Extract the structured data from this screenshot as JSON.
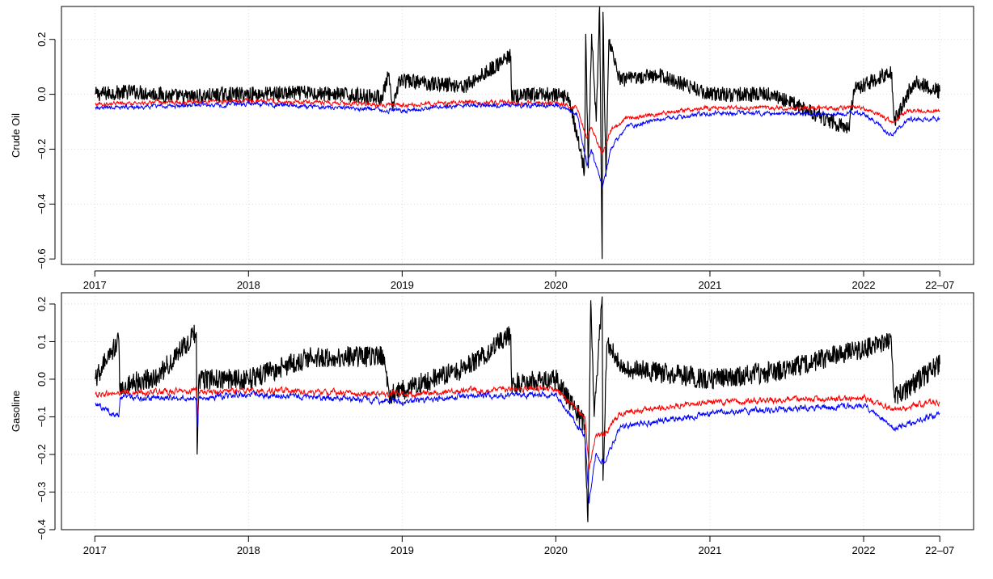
{
  "chart_data": [
    {
      "type": "line",
      "title": "",
      "xlabel": "",
      "ylabel": "Crude Oil",
      "xlim": [
        "2017-01-02",
        "2022-07-01"
      ],
      "ylim": [
        -0.62,
        0.32
      ],
      "grid": true,
      "x_ticks": [
        {
          "date": "2017-01-01",
          "label": "2017"
        },
        {
          "date": "2018-01-01",
          "label": "2018"
        },
        {
          "date": "2019-01-01",
          "label": "2019"
        },
        {
          "date": "2020-01-01",
          "label": "2020"
        },
        {
          "date": "2021-01-01",
          "label": "2021"
        },
        {
          "date": "2022-01-01",
          "label": "2022"
        },
        {
          "date": "2022-07-01",
          "label": "22–07"
        }
      ],
      "y_ticks": [
        {
          "value": 0.2,
          "label": "0.2"
        },
        {
          "value": 0.0,
          "label": "0.0"
        },
        {
          "value": -0.2,
          "label": "−0.2"
        },
        {
          "value": -0.4,
          "label": "−0.4"
        },
        {
          "value": -0.6,
          "label": "−0.6"
        }
      ],
      "series": [
        {
          "color": "#000000",
          "points": [
            [
              "2017-01-02",
              0.0
            ],
            [
              "2017-04-01",
              0.01
            ],
            [
              "2017-08-01",
              -0.01
            ],
            [
              "2017-12-01",
              0.0
            ],
            [
              "2018-06-01",
              0.005
            ],
            [
              "2018-11-15",
              -0.01
            ],
            [
              "2018-11-29",
              0.07
            ],
            [
              "2018-12-10",
              -0.06
            ],
            [
              "2018-12-24",
              0.05
            ],
            [
              "2019-06-01",
              0.03
            ],
            [
              "2019-09-16",
              0.14
            ],
            [
              "2019-09-18",
              -0.01
            ],
            [
              "2019-12-01",
              0.0
            ],
            [
              "2020-02-01",
              -0.01
            ],
            [
              "2020-03-09",
              -0.28
            ],
            [
              "2020-03-12",
              0.22
            ],
            [
              "2020-03-18",
              -0.27
            ],
            [
              "2020-03-26",
              0.22
            ],
            [
              "2020-04-06",
              -0.1
            ],
            [
              "2020-04-14",
              0.32
            ],
            [
              "2020-04-20",
              -0.6
            ],
            [
              "2020-04-22",
              0.3
            ],
            [
              "2020-04-29",
              -0.3
            ],
            [
              "2020-05-06",
              0.2
            ],
            [
              "2020-06-01",
              0.05
            ],
            [
              "2020-09-01",
              0.07
            ],
            [
              "2021-01-01",
              0.0
            ],
            [
              "2021-06-01",
              0.0
            ],
            [
              "2021-11-26",
              -0.13
            ],
            [
              "2021-12-10",
              0.02
            ],
            [
              "2022-03-08",
              0.08
            ],
            [
              "2022-03-15",
              -0.1
            ],
            [
              "2022-05-01",
              0.05
            ],
            [
              "2022-07-01",
              0.01
            ]
          ]
        },
        {
          "color": "#ff0000",
          "points": [
            [
              "2017-01-02",
              -0.035
            ],
            [
              "2018-01-01",
              -0.025
            ],
            [
              "2018-06-01",
              -0.03
            ],
            [
              "2019-01-01",
              -0.04
            ],
            [
              "2019-06-01",
              -0.03
            ],
            [
              "2020-01-01",
              -0.03
            ],
            [
              "2020-02-20",
              -0.05
            ],
            [
              "2020-03-15",
              -0.16
            ],
            [
              "2020-03-25",
              -0.12
            ],
            [
              "2020-04-21",
              -0.22
            ],
            [
              "2020-05-10",
              -0.13
            ],
            [
              "2020-06-15",
              -0.09
            ],
            [
              "2020-09-01",
              -0.07
            ],
            [
              "2021-01-01",
              -0.05
            ],
            [
              "2021-06-01",
              -0.05
            ],
            [
              "2022-01-01",
              -0.05
            ],
            [
              "2022-03-10",
              -0.1
            ],
            [
              "2022-04-15",
              -0.06
            ],
            [
              "2022-07-01",
              -0.06
            ]
          ]
        },
        {
          "color": "#0000ff",
          "points": [
            [
              "2017-01-02",
              -0.05
            ],
            [
              "2018-01-01",
              -0.035
            ],
            [
              "2018-06-01",
              -0.045
            ],
            [
              "2019-01-01",
              -0.06
            ],
            [
              "2019-06-01",
              -0.04
            ],
            [
              "2020-01-01",
              -0.04
            ],
            [
              "2020-02-20",
              -0.07
            ],
            [
              "2020-03-15",
              -0.26
            ],
            [
              "2020-03-25",
              -0.2
            ],
            [
              "2020-04-21",
              -0.34
            ],
            [
              "2020-05-10",
              -0.2
            ],
            [
              "2020-06-15",
              -0.12
            ],
            [
              "2020-09-01",
              -0.09
            ],
            [
              "2021-01-01",
              -0.07
            ],
            [
              "2021-06-01",
              -0.07
            ],
            [
              "2022-01-01",
              -0.07
            ],
            [
              "2022-03-10",
              -0.15
            ],
            [
              "2022-04-15",
              -0.09
            ],
            [
              "2022-07-01",
              -0.09
            ]
          ]
        }
      ]
    },
    {
      "type": "line",
      "title": "",
      "xlabel": "",
      "ylabel": "Gasoline",
      "xlim": [
        "2017-01-02",
        "2022-07-01"
      ],
      "ylim": [
        -0.4,
        0.23
      ],
      "grid": true,
      "x_ticks": [
        {
          "date": "2017-01-01",
          "label": "2017"
        },
        {
          "date": "2018-01-01",
          "label": "2018"
        },
        {
          "date": "2019-01-01",
          "label": "2019"
        },
        {
          "date": "2020-01-01",
          "label": "2020"
        },
        {
          "date": "2021-01-01",
          "label": "2021"
        },
        {
          "date": "2022-01-01",
          "label": "2022"
        },
        {
          "date": "2022-07-01",
          "label": "22–07"
        }
      ],
      "y_ticks": [
        {
          "value": 0.2,
          "label": "0.2"
        },
        {
          "value": 0.1,
          "label": "0.1"
        },
        {
          "value": 0.0,
          "label": "0.0"
        },
        {
          "value": -0.1,
          "label": "−0.1"
        },
        {
          "value": -0.2,
          "label": "−0.2"
        },
        {
          "value": -0.3,
          "label": "−0.3"
        },
        {
          "value": -0.4,
          "label": "−0.4"
        }
      ],
      "series": [
        {
          "color": "#000000",
          "points": [
            [
              "2017-01-02",
              0.0
            ],
            [
              "2017-02-27",
              0.105
            ],
            [
              "2017-03-01",
              -0.02
            ],
            [
              "2017-06-01",
              0.01
            ],
            [
              "2017-08-30",
              0.125
            ],
            [
              "2017-09-01",
              -0.2
            ],
            [
              "2017-09-05",
              0.0
            ],
            [
              "2018-01-01",
              0.0
            ],
            [
              "2018-06-01",
              0.06
            ],
            [
              "2018-11-20",
              0.06
            ],
            [
              "2018-12-01",
              -0.04
            ],
            [
              "2019-06-01",
              0.03
            ],
            [
              "2019-09-16",
              0.12
            ],
            [
              "2019-09-18",
              -0.01
            ],
            [
              "2020-01-01",
              0.0
            ],
            [
              "2020-03-09",
              -0.12
            ],
            [
              "2020-03-17",
              -0.38
            ],
            [
              "2020-03-24",
              0.21
            ],
            [
              "2020-04-01",
              -0.1
            ],
            [
              "2020-04-20",
              0.22
            ],
            [
              "2020-04-22",
              -0.27
            ],
            [
              "2020-05-01",
              0.09
            ],
            [
              "2020-06-15",
              0.03
            ],
            [
              "2021-01-01",
              0.0
            ],
            [
              "2021-06-01",
              0.02
            ],
            [
              "2022-03-08",
              0.1
            ],
            [
              "2022-03-15",
              -0.05
            ],
            [
              "2022-07-01",
              0.04
            ]
          ]
        },
        {
          "color": "#ff0000",
          "points": [
            [
              "2017-01-02",
              -0.04
            ],
            [
              "2017-08-30",
              -0.03
            ],
            [
              "2017-09-01",
              -0.11
            ],
            [
              "2017-09-05",
              -0.035
            ],
            [
              "2018-01-01",
              -0.03
            ],
            [
              "2019-01-01",
              -0.04
            ],
            [
              "2019-06-01",
              -0.03
            ],
            [
              "2020-01-01",
              -0.025
            ],
            [
              "2020-03-10",
              -0.1
            ],
            [
              "2020-03-20",
              -0.24
            ],
            [
              "2020-04-05",
              -0.15
            ],
            [
              "2020-04-25",
              -0.15
            ],
            [
              "2020-06-01",
              -0.09
            ],
            [
              "2021-01-01",
              -0.06
            ],
            [
              "2022-01-01",
              -0.05
            ],
            [
              "2022-03-15",
              -0.08
            ],
            [
              "2022-07-01",
              -0.06
            ]
          ]
        },
        {
          "color": "#0000ff",
          "points": [
            [
              "2017-01-02",
              -0.065
            ],
            [
              "2017-02-27",
              -0.1
            ],
            [
              "2017-03-02",
              -0.05
            ],
            [
              "2017-08-30",
              -0.05
            ],
            [
              "2017-09-01",
              -0.13
            ],
            [
              "2017-09-05",
              -0.05
            ],
            [
              "2018-01-01",
              -0.04
            ],
            [
              "2019-01-01",
              -0.06
            ],
            [
              "2019-06-01",
              -0.045
            ],
            [
              "2020-01-01",
              -0.04
            ],
            [
              "2020-03-10",
              -0.15
            ],
            [
              "2020-03-20",
              -0.33
            ],
            [
              "2020-04-05",
              -0.2
            ],
            [
              "2020-04-25",
              -0.22
            ],
            [
              "2020-06-01",
              -0.13
            ],
            [
              "2021-01-01",
              -0.09
            ],
            [
              "2022-01-01",
              -0.07
            ],
            [
              "2022-03-15",
              -0.13
            ],
            [
              "2022-07-01",
              -0.09
            ]
          ]
        }
      ]
    }
  ]
}
